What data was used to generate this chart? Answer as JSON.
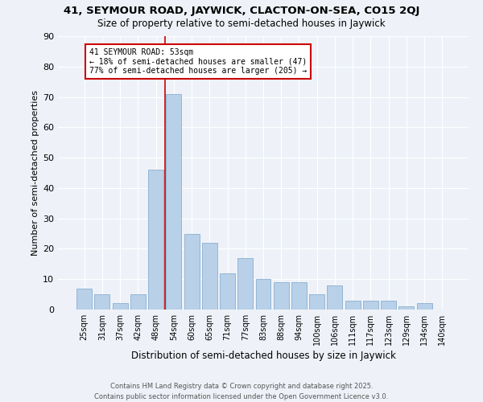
{
  "title_line1": "41, SEYMOUR ROAD, JAYWICK, CLACTON-ON-SEA, CO15 2QJ",
  "title_line2": "Size of property relative to semi-detached houses in Jaywick",
  "xlabel": "Distribution of semi-detached houses by size in Jaywick",
  "ylabel": "Number of semi-detached properties",
  "categories": [
    "25sqm",
    "31sqm",
    "37sqm",
    "42sqm",
    "48sqm",
    "54sqm",
    "60sqm",
    "65sqm",
    "71sqm",
    "77sqm",
    "83sqm",
    "88sqm",
    "94sqm",
    "100sqm",
    "106sqm",
    "111sqm",
    "117sqm",
    "123sqm",
    "129sqm",
    "134sqm",
    "140sqm"
  ],
  "values": [
    7,
    5,
    2,
    5,
    46,
    71,
    25,
    22,
    12,
    17,
    10,
    9,
    9,
    5,
    8,
    3,
    3,
    3,
    1,
    2,
    0
  ],
  "bar_color": "#b8d0e8",
  "bar_edgecolor": "#8ab0d0",
  "annotation_title": "41 SEYMOUR ROAD: 53sqm",
  "annotation_line1": "← 18% of semi-detached houses are smaller (47)",
  "annotation_line2": "77% of semi-detached houses are larger (205) →",
  "annotation_box_color": "#ffffff",
  "annotation_box_edgecolor": "#cc0000",
  "vline_color": "#cc0000",
  "ylim": [
    0,
    90
  ],
  "yticks": [
    0,
    10,
    20,
    30,
    40,
    50,
    60,
    70,
    80,
    90
  ],
  "background_color": "#eef2f8",
  "footnote1": "Contains HM Land Registry data © Crown copyright and database right 2025.",
  "footnote2": "Contains public sector information licensed under the Open Government Licence v3.0."
}
